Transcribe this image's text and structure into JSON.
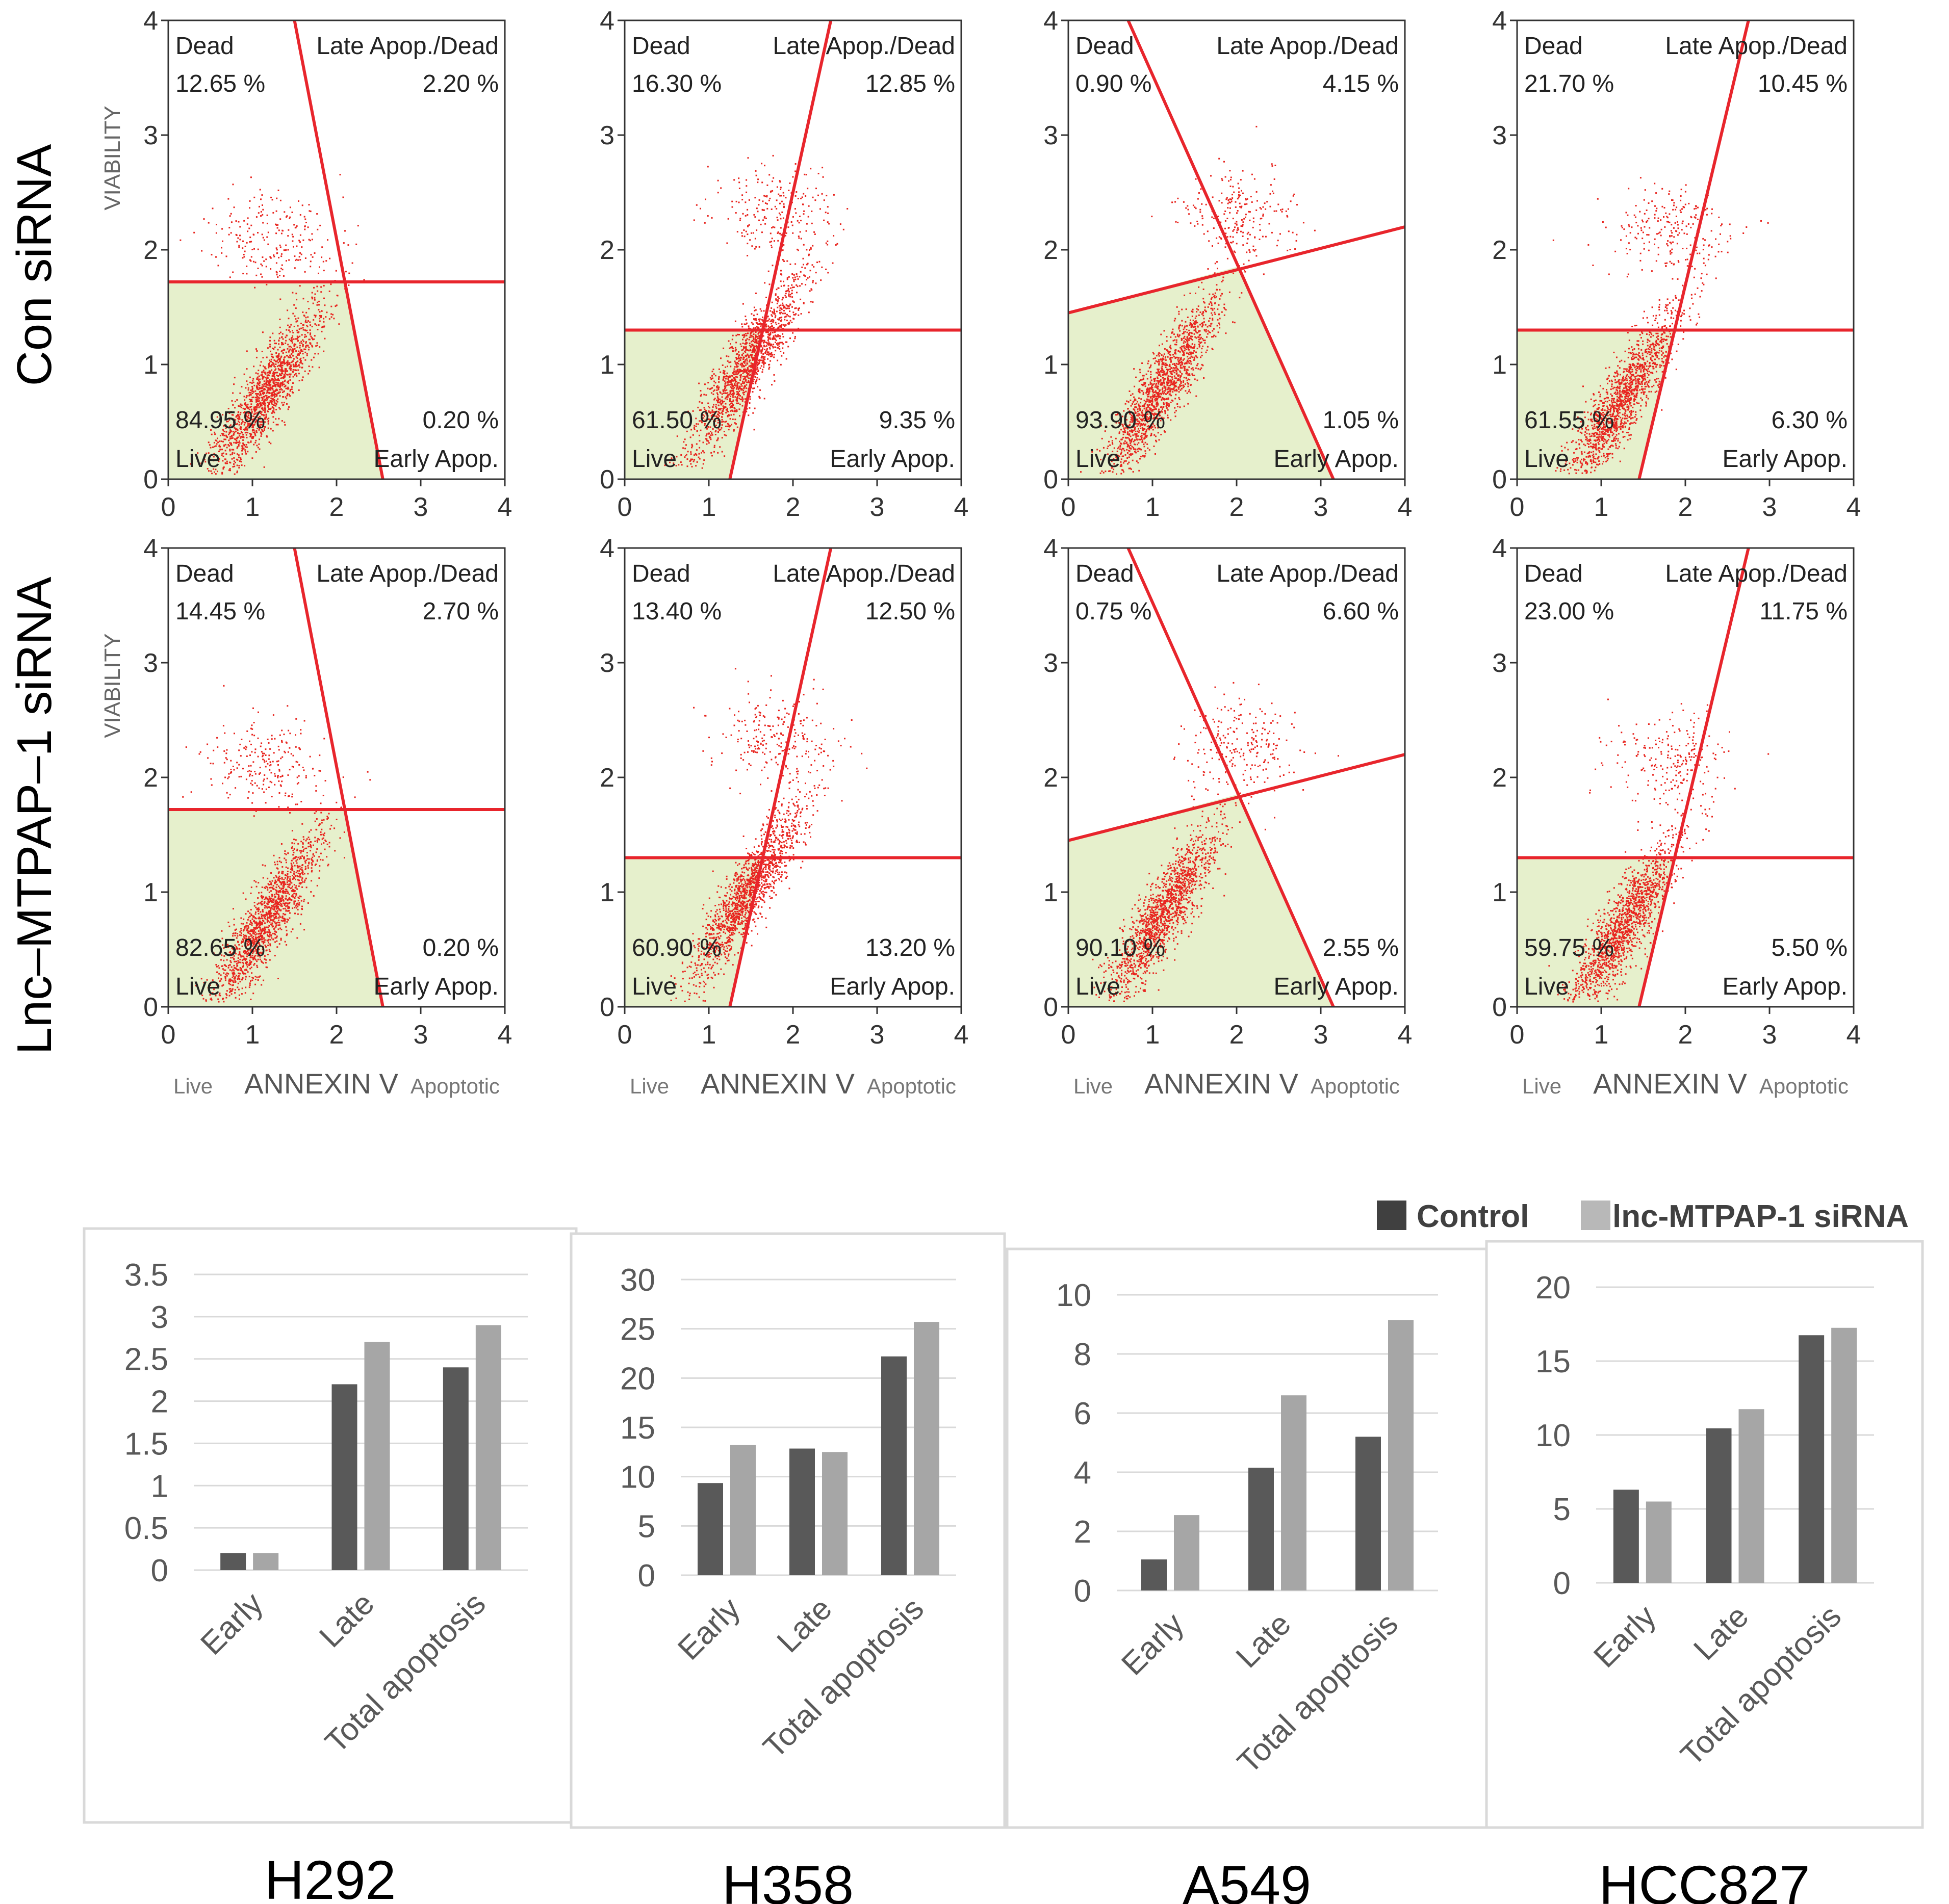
{
  "row_labels": {
    "control": "Con siRNA",
    "knockdown": "Lnc–MTPAP–1 siRNA"
  },
  "flow_axis": {
    "ticks": [
      "0",
      "1",
      "2",
      "3",
      "4"
    ],
    "ylabel": "VIABILITY",
    "xlabel": "ANNEXIN V",
    "x_left_label": "Live",
    "x_right_label": "Apoptotic"
  },
  "quadrant_labels": {
    "dead": "Dead",
    "late": "Late Apop./Dead",
    "live": "Live",
    "early": "Early Apop."
  },
  "flow_panels": [
    {
      "cell_line": "H292",
      "condition": "Con siRNA",
      "dead": "12.65 %",
      "late": "2.20 %",
      "live": "84.95 %",
      "early": "0.20 %"
    },
    {
      "cell_line": "H358",
      "condition": "Con siRNA",
      "dead": "16.30 %",
      "late": "12.85 %",
      "live": "61.50 %",
      "early": "9.35 %"
    },
    {
      "cell_line": "A549",
      "condition": "Con siRNA",
      "dead": "0.90 %",
      "late": "4.15 %",
      "live": "93.90 %",
      "early": "1.05 %"
    },
    {
      "cell_line": "HCC827",
      "condition": "Con siRNA",
      "dead": "21.70 %",
      "late": "10.45 %",
      "live": "61.55 %",
      "early": "6.30 %"
    },
    {
      "cell_line": "H292",
      "condition": "Lnc-MTPAP-1 siRNA",
      "dead": "14.45 %",
      "late": "2.70 %",
      "live": "82.65 %",
      "early": "0.20 %"
    },
    {
      "cell_line": "H358",
      "condition": "Lnc-MTPAP-1 siRNA",
      "dead": "13.40 %",
      "late": "12.50 %",
      "live": "60.90 %",
      "early": "13.20 %"
    },
    {
      "cell_line": "A549",
      "condition": "Lnc-MTPAP-1 siRNA",
      "dead": "0.75 %",
      "late": "6.60 %",
      "live": "90.10 %",
      "early": "2.55 %"
    },
    {
      "cell_line": "HCC827",
      "condition": "Lnc-MTPAP-1 siRNA",
      "dead": "23.00 %",
      "late": "11.75 %",
      "live": "59.75 %",
      "early": "5.50 %"
    }
  ],
  "legend": {
    "control": "Control",
    "knockdown": "lnc-MTPAP-1 siRNA"
  },
  "colors": {
    "control": "#595959",
    "knockdown": "#a6a6a6",
    "gate_line": "#e8252c",
    "live_gate": "#e6f0cc",
    "dots": "#e8251f"
  },
  "chart_data": [
    {
      "type": "bar",
      "cell_line": "H292",
      "categories": [
        "Early",
        "Late",
        "Total apoptosis"
      ],
      "series": [
        {
          "name": "Control",
          "values": [
            0.2,
            2.2,
            2.4
          ]
        },
        {
          "name": "lnc-MTPAP-1 siRNA",
          "values": [
            0.2,
            2.7,
            2.9
          ]
        }
      ],
      "yticks": [
        "0",
        "0.5",
        "1",
        "1.5",
        "2",
        "2.5",
        "3",
        "3.5"
      ],
      "ylim": [
        0,
        3.5
      ]
    },
    {
      "type": "bar",
      "cell_line": "H358",
      "categories": [
        "Early",
        "Late",
        "Total apoptosis"
      ],
      "series": [
        {
          "name": "Control",
          "values": [
            9.35,
            12.85,
            22.2
          ]
        },
        {
          "name": "lnc-MTPAP-1 siRNA",
          "values": [
            13.2,
            12.5,
            25.7
          ]
        }
      ],
      "yticks": [
        "0",
        "5",
        "10",
        "15",
        "20",
        "25",
        "30"
      ],
      "ylim": [
        0,
        30
      ]
    },
    {
      "type": "bar",
      "cell_line": "A549",
      "categories": [
        "Early",
        "Late",
        "Total apoptosis"
      ],
      "series": [
        {
          "name": "Control",
          "values": [
            1.05,
            4.15,
            5.2
          ]
        },
        {
          "name": "lnc-MTPAP-1 siRNA",
          "values": [
            2.55,
            6.6,
            9.15
          ]
        }
      ],
      "yticks": [
        "0",
        "2",
        "4",
        "6",
        "8",
        "10"
      ],
      "ylim": [
        0,
        10
      ]
    },
    {
      "type": "bar",
      "cell_line": "HCC827",
      "categories": [
        "Early",
        "Late",
        "Total apoptosis"
      ],
      "series": [
        {
          "name": "Control",
          "values": [
            6.3,
            10.45,
            16.75
          ]
        },
        {
          "name": "lnc-MTPAP-1 siRNA",
          "values": [
            5.5,
            11.75,
            17.25
          ]
        }
      ],
      "yticks": [
        "0",
        "5",
        "10",
        "15",
        "20"
      ],
      "ylim": [
        0,
        20
      ]
    }
  ]
}
